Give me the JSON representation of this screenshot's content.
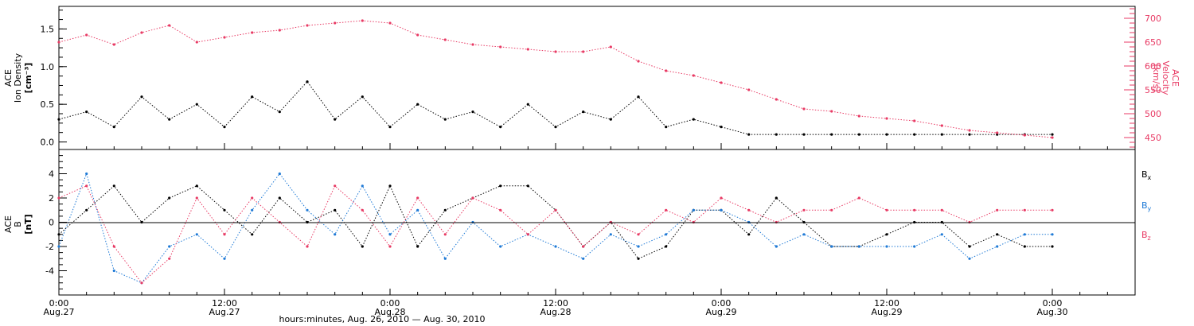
{
  "colors": {
    "black": "#000000",
    "blue": "#1f7ad6",
    "pink": "#e83a64"
  },
  "top_panel": {
    "ylabel_lines": [
      "ACE",
      "Ion Density",
      "[cm⁻³]"
    ],
    "right_ylabel_lines": [
      "ACE",
      "Velocity",
      "[km/s]"
    ]
  },
  "bottom_panel": {
    "ylabel_lines": [
      "ACE",
      "B",
      "[nT]"
    ],
    "legend": [
      {
        "label": "B",
        "sub": "x",
        "color": "#000000"
      },
      {
        "label": "B",
        "sub": "y",
        "color": "#1f7ad6"
      },
      {
        "label": "B",
        "sub": "z",
        "color": "#e83a64"
      }
    ]
  },
  "x_axis": {
    "ticks": [
      {
        "line1": "0:00",
        "line2": "Aug.27",
        "hour": 0
      },
      {
        "line1": "12:00",
        "line2": "Aug.27",
        "hour": 12
      },
      {
        "line1": "0:00",
        "line2": "Aug.28",
        "hour": 24
      },
      {
        "line1": "12:00",
        "line2": "Aug.28",
        "hour": 36
      },
      {
        "line1": "0:00",
        "line2": "Aug.29",
        "hour": 48
      },
      {
        "line1": "12:00",
        "line2": "Aug.29",
        "hour": 60
      },
      {
        "line1": "0:00",
        "line2": "Aug.30",
        "hour": 72
      }
    ],
    "caption": "hours:minutes, Aug. 26, 2010 — Aug. 30, 2010"
  },
  "chart_data": [
    {
      "type": "scatter",
      "title": "",
      "xlabel": "hours:minutes, Aug. 26, 2010 — Aug. 30, 2010",
      "ylabel": "ACE Ion Density [cm⁻³]",
      "xlim": [
        0,
        78
      ],
      "ylim": [
        -0.1,
        1.8
      ],
      "yticks": [
        "0.0",
        "0.5",
        "1.0",
        "1.5"
      ],
      "right_axis": {
        "ylabel": "ACE Velocity [km/s]",
        "ylim": [
          425,
          725
        ],
        "ticks": [
          "450",
          "500",
          "550",
          "600",
          "650",
          "700"
        ]
      },
      "series": [
        {
          "color": "#000000",
          "axis": "left",
          "x": [
            0,
            2,
            4,
            6,
            8,
            10,
            12,
            14,
            16,
            18,
            20,
            22,
            24,
            26,
            28,
            30,
            32,
            34,
            36,
            38,
            40,
            42,
            44,
            46,
            48,
            50,
            52,
            54,
            56,
            58,
            60,
            62,
            64,
            66,
            68,
            70,
            72
          ],
          "y": [
            0.3,
            0.4,
            0.2,
            0.6,
            0.3,
            0.5,
            0.2,
            0.6,
            0.4,
            0.8,
            0.3,
            0.6,
            0.2,
            0.5,
            0.3,
            0.4,
            0.2,
            0.5,
            0.2,
            0.4,
            0.3,
            0.6,
            0.2,
            0.3,
            0.2,
            0.1,
            0.1,
            0.1,
            0.1,
            0.1,
            0.1,
            0.1,
            0.1,
            0.1,
            0.1,
            0.1,
            0.1
          ]
        },
        {
          "color": "#e83a64",
          "axis": "right",
          "x": [
            0,
            2,
            4,
            6,
            8,
            10,
            12,
            14,
            16,
            18,
            20,
            22,
            24,
            26,
            28,
            30,
            32,
            34,
            36,
            38,
            40,
            42,
            44,
            46,
            48,
            50,
            52,
            54,
            56,
            58,
            60,
            62,
            64,
            66,
            68,
            70,
            72
          ],
          "y": [
            650,
            665,
            645,
            670,
            685,
            650,
            660,
            670,
            675,
            685,
            690,
            695,
            690,
            665,
            655,
            645,
            640,
            635,
            630,
            630,
            640,
            610,
            590,
            580,
            565,
            550,
            530,
            510,
            505,
            495,
            490,
            485,
            475,
            465,
            460,
            455,
            450
          ]
        }
      ]
    },
    {
      "type": "scatter",
      "title": "",
      "xlabel": "hours:minutes, Aug. 26, 2010 — Aug. 30, 2010",
      "ylabel": "ACE B [nT]",
      "xlim": [
        0,
        78
      ],
      "ylim": [
        -6,
        6
      ],
      "yticks": [
        "-4",
        "-2",
        "0",
        "2",
        "4"
      ],
      "series": [
        {
          "name": "Bx",
          "color": "#000000",
          "x": [
            0,
            2,
            4,
            6,
            8,
            10,
            12,
            14,
            16,
            18,
            20,
            22,
            24,
            26,
            28,
            30,
            32,
            34,
            36,
            38,
            40,
            42,
            44,
            46,
            48,
            50,
            52,
            54,
            56,
            58,
            60,
            62,
            64,
            66,
            68,
            70,
            72
          ],
          "y": [
            -1,
            1,
            3,
            0,
            2,
            3,
            1,
            -1,
            2,
            0,
            1,
            -2,
            3,
            -2,
            1,
            2,
            3,
            3,
            1,
            -2,
            0,
            -3,
            -2,
            1,
            1,
            -1,
            2,
            0,
            -2,
            -2,
            -1,
            0,
            0,
            -2,
            -1,
            -2,
            -2
          ]
        },
        {
          "name": "By",
          "color": "#1f7ad6",
          "x": [
            0,
            2,
            4,
            6,
            8,
            10,
            12,
            14,
            16,
            18,
            20,
            22,
            24,
            26,
            28,
            30,
            32,
            34,
            36,
            38,
            40,
            42,
            44,
            46,
            48,
            50,
            52,
            54,
            56,
            58,
            60,
            62,
            64,
            66,
            68,
            70,
            72
          ],
          "y": [
            -2,
            4,
            -4,
            -5,
            -2,
            -1,
            -3,
            1,
            4,
            1,
            -1,
            3,
            -1,
            1,
            -3,
            0,
            -2,
            -1,
            -2,
            -3,
            -1,
            -2,
            -1,
            1,
            1,
            0,
            -2,
            -1,
            -2,
            -2,
            -2,
            -2,
            -1,
            -3,
            -2,
            -1,
            -1
          ]
        },
        {
          "name": "Bz",
          "color": "#e83a64",
          "x": [
            0,
            2,
            4,
            6,
            8,
            10,
            12,
            14,
            16,
            18,
            20,
            22,
            24,
            26,
            28,
            30,
            32,
            34,
            36,
            38,
            40,
            42,
            44,
            46,
            48,
            50,
            52,
            54,
            56,
            58,
            60,
            62,
            64,
            66,
            68,
            70,
            72
          ],
          "y": [
            2,
            3,
            -2,
            -5,
            -3,
            2,
            -1,
            2,
            0,
            -2,
            3,
            1,
            -2,
            2,
            -1,
            2,
            1,
            -1,
            1,
            -2,
            0,
            -1,
            1,
            0,
            2,
            1,
            0,
            1,
            1,
            2,
            1,
            1,
            1,
            0,
            1,
            1,
            1
          ]
        }
      ]
    }
  ]
}
